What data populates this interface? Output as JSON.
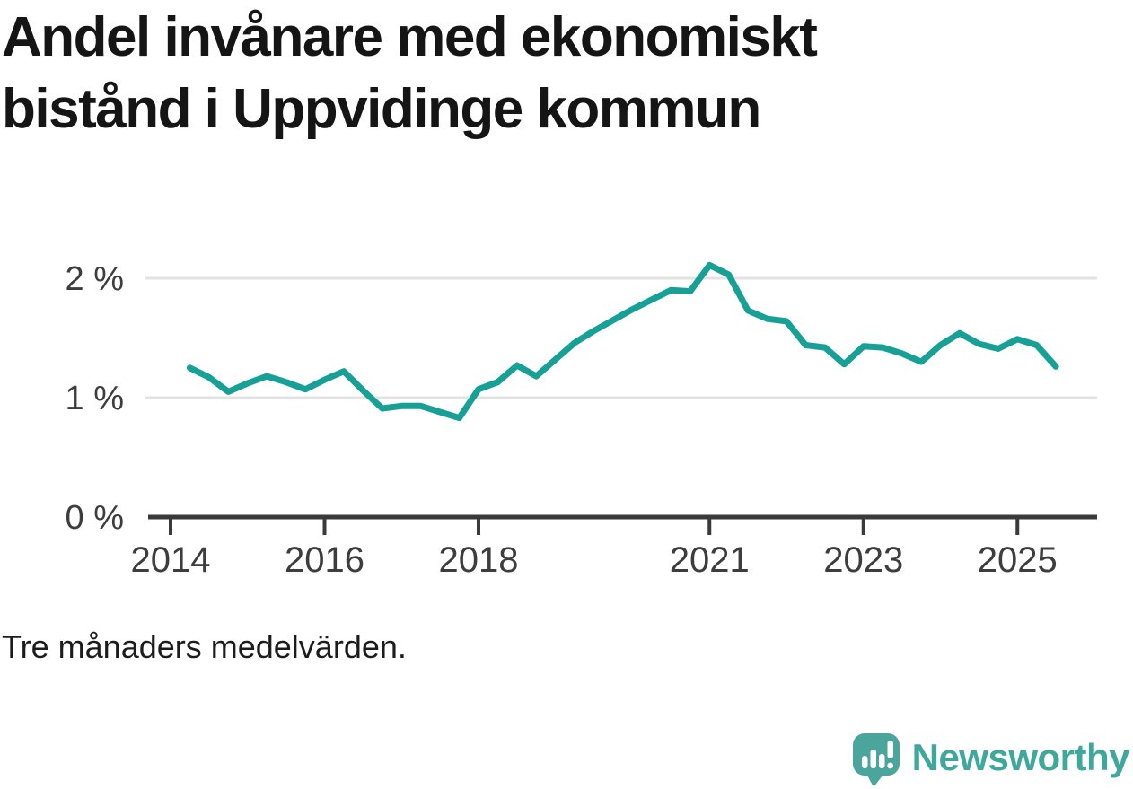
{
  "title": {
    "line1": "Andel invånare med ekonomiskt",
    "line2": "bistånd i Uppvidinge kommun"
  },
  "caption": "Tre månaders medelvärden.",
  "brand": {
    "name": "Newsworthy",
    "icon": "newsworthy-speech-bubble-bar-chart-icon"
  },
  "colors": {
    "background": "#ffffff",
    "line": "#16a096",
    "grid": "#e3e3e3",
    "axis": "#3a3a3a",
    "tick_label": "#3d3d3d",
    "title": "#151515",
    "caption": "#1c1c1c",
    "brand_teal": "#3ea89c",
    "icon_teal": "#4aa69d"
  },
  "chart_data": {
    "type": "line",
    "title": "Andel invånare med ekonomiskt bistånd i Uppvidinge kommun",
    "subtitle": "Tre månaders medelvärden.",
    "unit": "%",
    "series_name": "Andel invånare med ekonomiskt bistånd",
    "x": [
      2014.25,
      2014.5,
      2014.75,
      2015.0,
      2015.25,
      2015.5,
      2015.75,
      2016.0,
      2016.25,
      2016.5,
      2016.75,
      2017.0,
      2017.25,
      2017.5,
      2017.75,
      2018.0,
      2018.25,
      2018.5,
      2018.75,
      2019.0,
      2019.25,
      2019.5,
      2019.75,
      2020.0,
      2020.25,
      2020.5,
      2020.75,
      2021.0,
      2021.25,
      2021.5,
      2021.75,
      2022.0,
      2022.25,
      2022.5,
      2022.75,
      2023.0,
      2023.25,
      2023.5,
      2023.75,
      2024.0,
      2024.25,
      2024.5,
      2024.75,
      2025.0,
      2025.25,
      2025.5
    ],
    "values": [
      1.25,
      1.17,
      1.05,
      1.12,
      1.18,
      1.13,
      1.07,
      1.15,
      1.22,
      1.06,
      0.91,
      0.93,
      0.93,
      0.88,
      0.83,
      1.07,
      1.13,
      1.27,
      1.18,
      1.32,
      1.46,
      1.56,
      1.65,
      1.74,
      1.82,
      1.9,
      1.89,
      2.11,
      2.03,
      1.73,
      1.66,
      1.64,
      1.44,
      1.42,
      1.28,
      1.43,
      1.42,
      1.37,
      1.3,
      1.44,
      1.54,
      1.45,
      1.41,
      1.49,
      1.44,
      1.26
    ],
    "x_tick_years": [
      2014,
      2016,
      2018,
      2021,
      2023,
      2025
    ],
    "x_tick_labels": [
      "2014",
      "2016",
      "2018",
      "2021",
      "2023",
      "2025"
    ],
    "y_ticks": [
      0,
      1,
      2
    ],
    "y_tick_labels": [
      "0 %",
      "1 %",
      "2 %"
    ],
    "ylim": [
      0,
      2.3
    ],
    "xlim": [
      2013.7,
      2026.0
    ],
    "grid": "horizontal",
    "legend": "none"
  }
}
